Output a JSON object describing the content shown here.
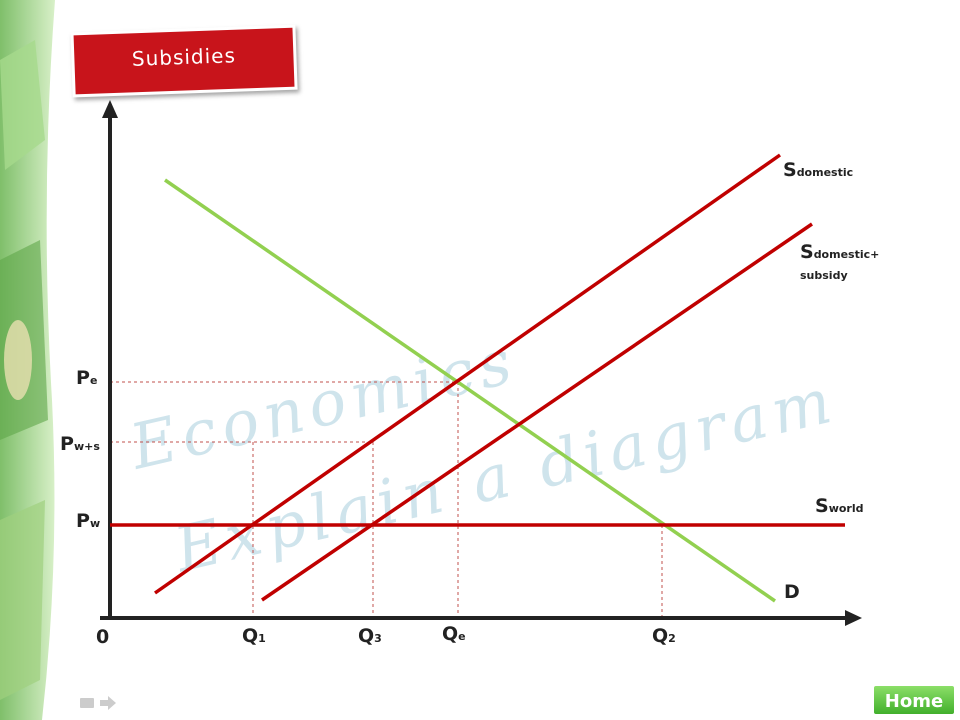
{
  "header": {
    "title": "Subsidies"
  },
  "watermark": {
    "line1": "Economics",
    "line2": "Explain a diagram"
  },
  "origin": "0",
  "price_labels": [
    {
      "main": "P",
      "sub": "e"
    },
    {
      "main": "P",
      "sub": "w+s"
    },
    {
      "main": "P",
      "sub": "w"
    }
  ],
  "quantity_labels": [
    {
      "main": "Q",
      "sub": "1"
    },
    {
      "main": "Q",
      "sub": "3"
    },
    {
      "main": "Q",
      "sub": "e"
    },
    {
      "main": "Q",
      "sub": "2"
    }
  ],
  "curves": [
    {
      "main": "S",
      "sub": "domestic"
    },
    {
      "main": "S",
      "sub": "domestic+",
      "sub2": "subsidy"
    },
    {
      "main": "S",
      "sub": "world"
    },
    {
      "main": "D"
    }
  ],
  "nav": {
    "home": "Home"
  }
}
